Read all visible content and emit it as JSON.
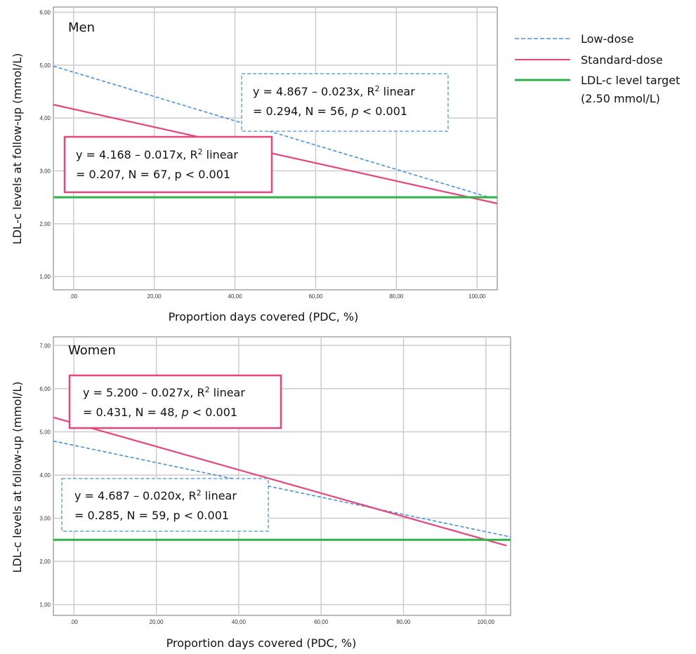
{
  "legend": {
    "low_dose": "Low-dose",
    "standard_dose": "Standard-dose",
    "target_line1": "LDL-c level target",
    "target_line2": "(2.50 mmol/L)"
  },
  "colors": {
    "low_dose": "#4a90d9",
    "standard_dose": "#e8457a",
    "target": "#2db34a",
    "grid": "#cccccc"
  },
  "chart_data": [
    {
      "type": "line",
      "panel_label": "Men",
      "xlabel": "Proportion days covered (PDC, %)",
      "ylabel": "LDL-c levels at follow-up (mmol/L)",
      "x_ticks": [
        ".00",
        "20,00",
        "40,00",
        "60,00",
        "80,00",
        "100,00"
      ],
      "y_ticks": [
        "1,00",
        "2,00",
        "3,00",
        "4,00",
        "5,00",
        "6,00"
      ],
      "xlim": [
        -5,
        105
      ],
      "ylim": [
        0.75,
        6.1
      ],
      "grid": true,
      "series": [
        {
          "name": "Low-dose",
          "style": "dashed",
          "intercept": 4.867,
          "slope": -0.023,
          "x_range": [
            -5,
            103
          ]
        },
        {
          "name": "Standard-dose",
          "style": "solid",
          "intercept": 4.168,
          "slope": -0.017,
          "x_range": [
            -5,
            105
          ]
        },
        {
          "name": "LDL-c level target (2.50 mmol/L)",
          "style": "solid-thick",
          "y": 2.5,
          "x_range": [
            -5,
            105
          ]
        }
      ],
      "annotations": [
        {
          "series": "Low-dose",
          "line1_pre": "y = 4.867 – 0.023x, R",
          "sup": "2",
          "line1_post": " linear",
          "line2_pre": "= 0.294, N = 56, ",
          "p": "p",
          "line2_post": " < 0.001"
        },
        {
          "series": "Standard-dose",
          "line1_pre": "y = 4.168 – 0.017x, R",
          "sup": "2",
          "line1_post": " linear",
          "line2_pre": "= 0.207, N = 67, ",
          "p": "p",
          "line2_post": " < 0.001"
        }
      ]
    },
    {
      "type": "line",
      "panel_label": "Women",
      "xlabel": "Proportion days covered (PDC, %)",
      "ylabel": "LDL-c levels at follow-up (mmol/L)",
      "x_ticks": [
        ".00",
        "20,00",
        "40,00",
        "60,00",
        "80,00",
        "100,00"
      ],
      "y_ticks": [
        "1,00",
        "2,00",
        "3,00",
        "4,00",
        "5,00",
        "6,00",
        "7,00"
      ],
      "xlim": [
        -5,
        106
      ],
      "ylim": [
        0.75,
        7.2
      ],
      "grid": true,
      "series": [
        {
          "name": "Low-dose",
          "style": "dashed",
          "intercept": 4.687,
          "slope": -0.02,
          "x_range": [
            -5,
            106
          ]
        },
        {
          "name": "Standard-dose",
          "style": "solid",
          "intercept": 5.2,
          "slope": -0.027,
          "x_range": [
            -5,
            105
          ]
        },
        {
          "name": "LDL-c level target (2.50 mmol/L)",
          "style": "solid-thick",
          "y": 2.5,
          "x_range": [
            -5,
            106
          ]
        }
      ],
      "annotations": [
        {
          "series": "Standard-dose",
          "line1_pre": "y = 5.200 – 0.027x, R",
          "sup": "2",
          "line1_post": " linear",
          "line2_pre": "= 0.431, N = 48, ",
          "p": "p",
          "line2_post": " < 0.001"
        },
        {
          "series": "Low-dose",
          "line1_pre": "y = 4.687 – 0.020x, R",
          "sup": "2",
          "line1_post": " linear",
          "line2_pre": "= 0.285, N = 59, ",
          "p": "p",
          "line2_post": " < 0.001"
        }
      ]
    }
  ]
}
